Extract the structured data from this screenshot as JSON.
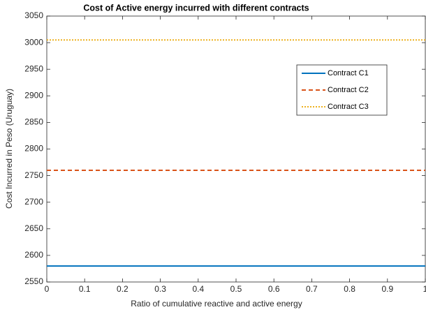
{
  "chart_data": {
    "type": "line",
    "title": "Cost of Active energy incurred with different contracts",
    "x_label": "Ratio of cumulative reactive and active energy",
    "y_label": "Cost Incurred in Peso (Uruguay)",
    "x": [
      0,
      1
    ],
    "series": [
      {
        "name": "Contract C1",
        "color": "#0072BD",
        "line_style": "solid",
        "values": [
          2580,
          2580
        ]
      },
      {
        "name": "Contract C2",
        "color": "#D95319",
        "line_style": "dashed",
        "values": [
          2760,
          2760
        ]
      },
      {
        "name": "Contract C3",
        "color": "#EDB120",
        "line_style": "dotted",
        "values": [
          3005,
          3005
        ]
      }
    ],
    "xlim": [
      0,
      1
    ],
    "xticks": [
      0,
      0.1,
      0.2,
      0.3,
      0.4,
      0.5,
      0.6,
      0.7,
      0.8,
      0.9,
      1
    ],
    "ylim": [
      2550,
      3050
    ],
    "yticks": [
      2550,
      2600,
      2650,
      2700,
      2750,
      2800,
      2850,
      2900,
      2950,
      3000,
      3050
    ],
    "legend": true
  }
}
